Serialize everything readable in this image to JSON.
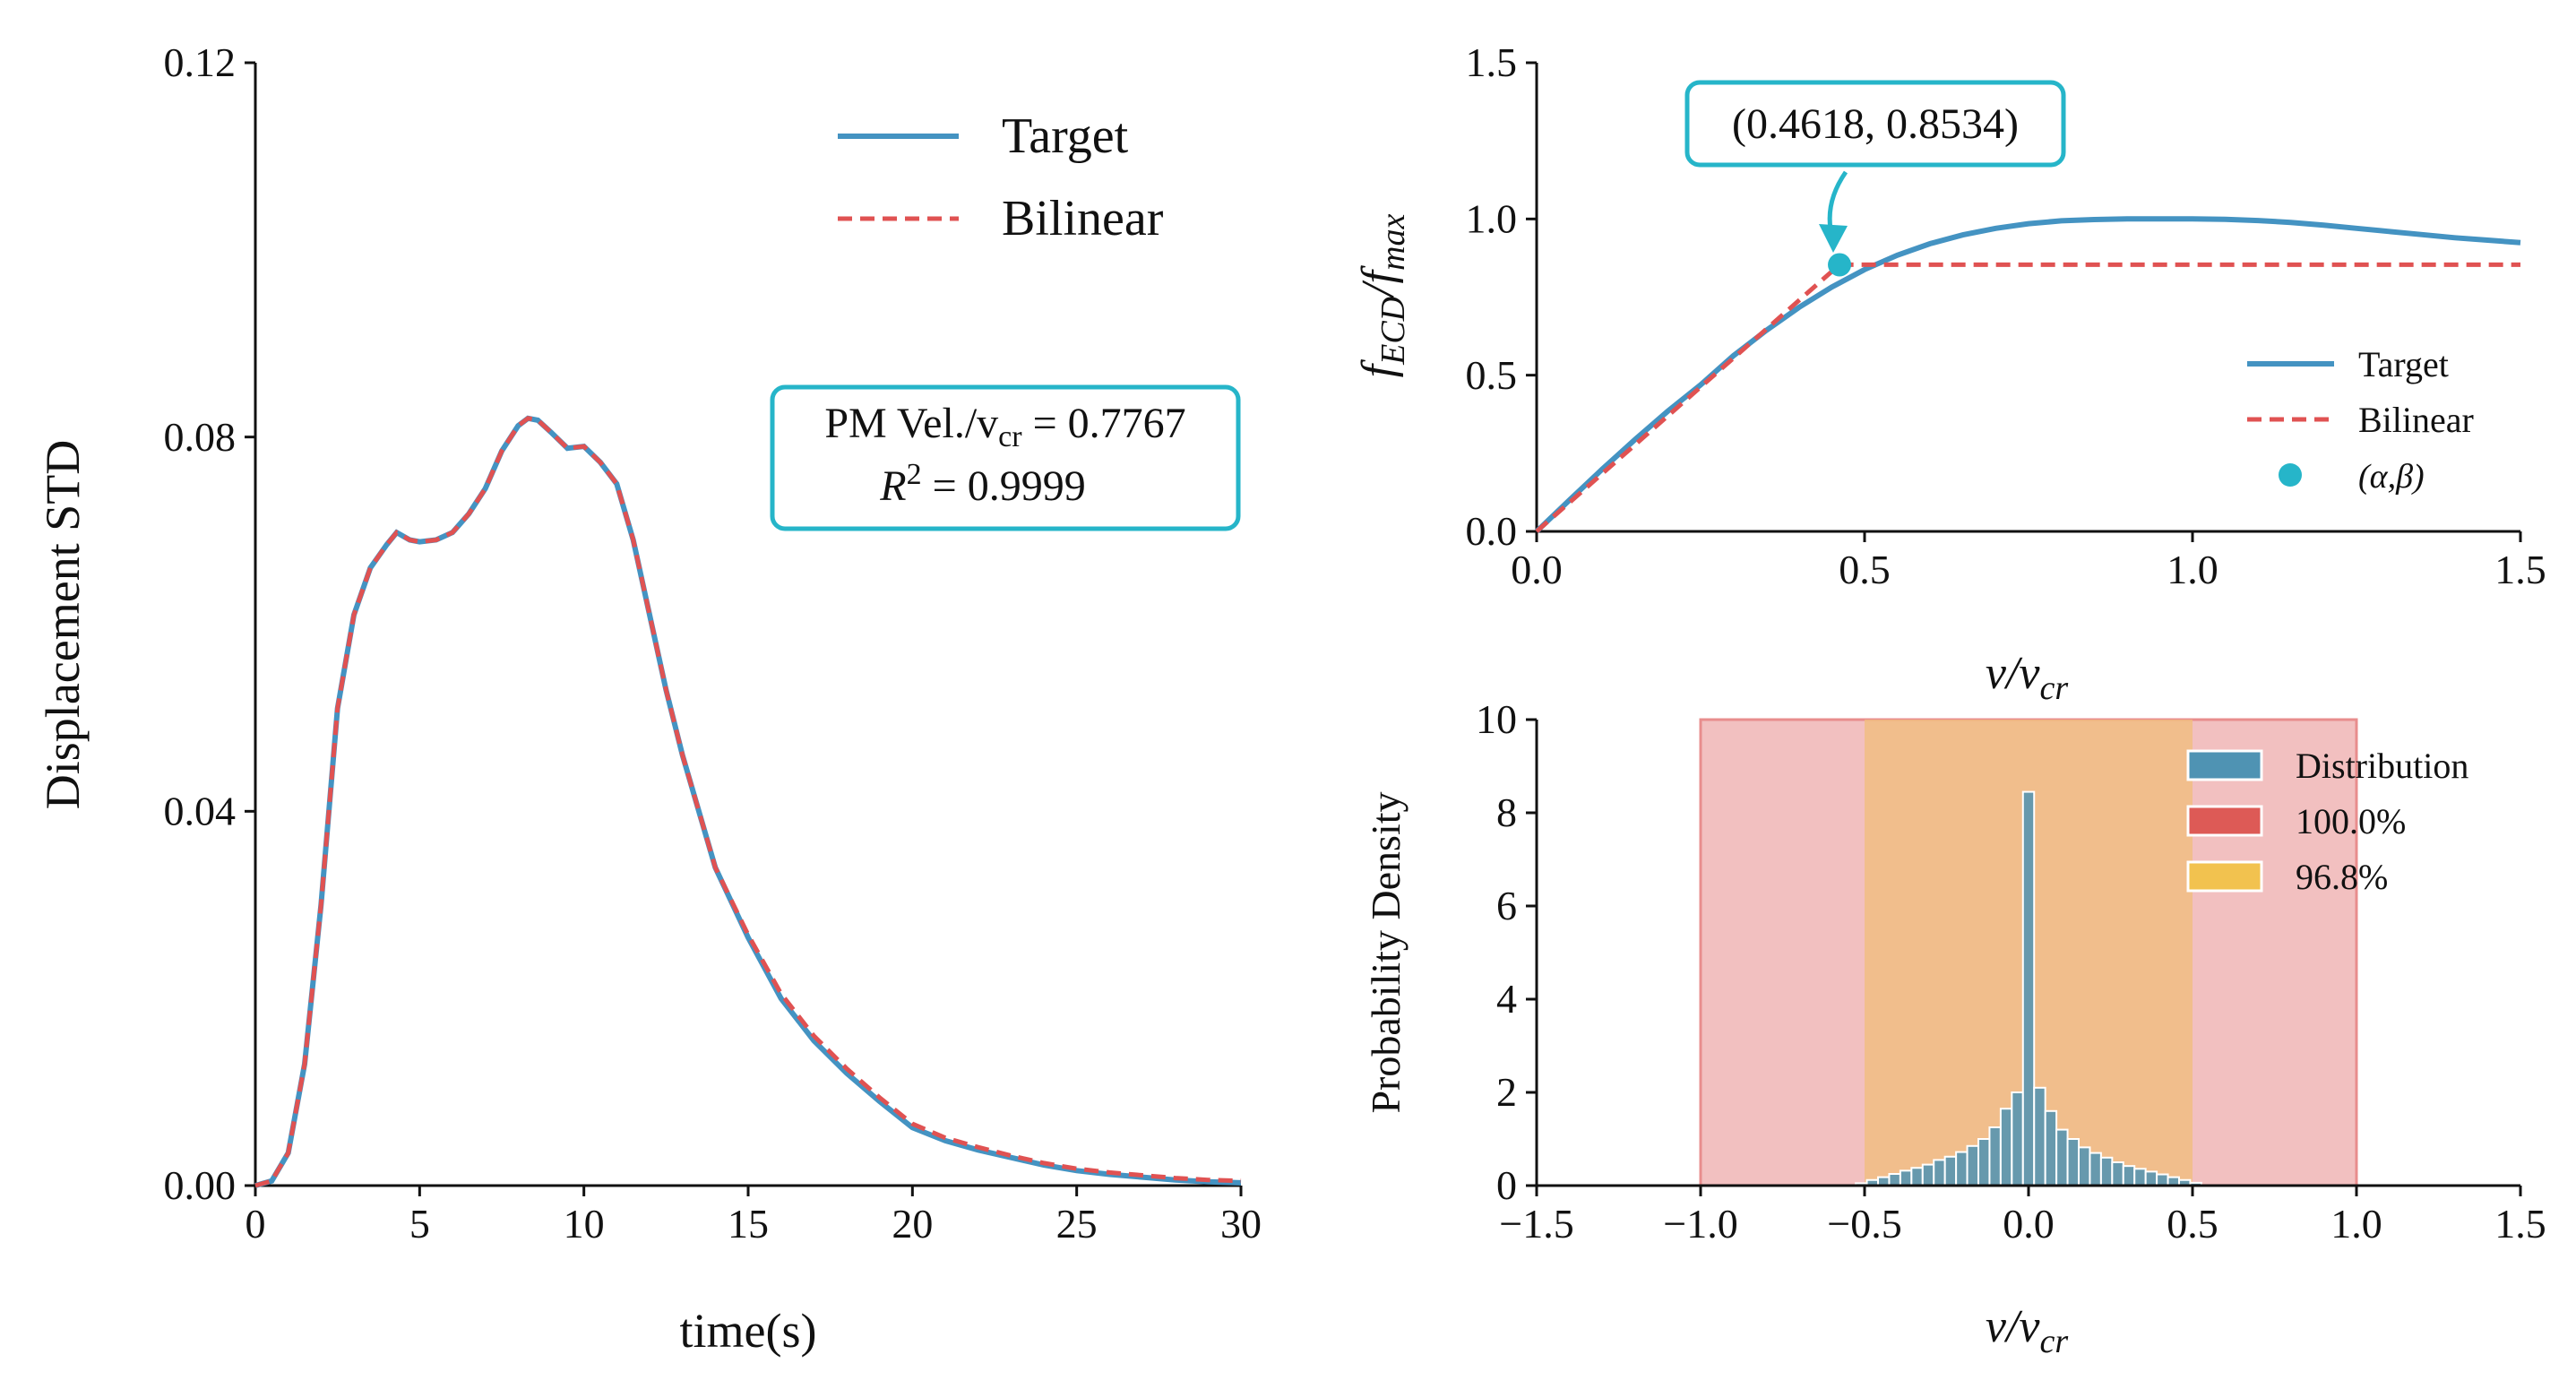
{
  "colors": {
    "target": "#4493c2",
    "bilinear": "#e05252",
    "point": "#26b5c9",
    "annotation_border": "#26b5c9",
    "hist_bar": "#4f93b3",
    "band_100": "#e88d8d",
    "band_968": "#f0bd7e"
  },
  "chart_data": [
    {
      "id": "displacement",
      "type": "line",
      "xlabel": "time(s)",
      "ylabel": "Displacement STD",
      "xlim": [
        0,
        30
      ],
      "ylim": [
        0,
        0.12
      ],
      "xticks": [
        0,
        5,
        10,
        15,
        20,
        25,
        30
      ],
      "xtick_labels": [
        "0",
        "5",
        "10",
        "15",
        "20",
        "25",
        "30"
      ],
      "yticks": [
        0,
        0.04,
        0.08,
        0.12
      ],
      "ytick_labels": [
        "0.00",
        "0.04",
        "0.08",
        "0.12"
      ],
      "legend": {
        "placement": "upper-right",
        "entries": [
          "Target",
          "Bilinear"
        ]
      },
      "annotation": {
        "line1": "PM Vel./v",
        "line1_sub": "cr",
        "line1_value": " = 0.7767",
        "line2": "R",
        "line2_sup": "2",
        "line2_value": " = 0.9999"
      },
      "series": [
        {
          "name": "Target",
          "style": "solid",
          "x": [
            0,
            0.5,
            1,
            1.5,
            2,
            2.5,
            3,
            3.5,
            4,
            4.3,
            4.7,
            5,
            5.5,
            6,
            6.5,
            7,
            7.5,
            8,
            8.3,
            8.6,
            9,
            9.5,
            10,
            10.5,
            11,
            11.5,
            12,
            12.5,
            13,
            14,
            15,
            16,
            17,
            18,
            19,
            20,
            21,
            22,
            23,
            24,
            25,
            26,
            27,
            28,
            29,
            30
          ],
          "y": [
            0,
            0.0005,
            0.0035,
            0.013,
            0.03,
            0.051,
            0.061,
            0.066,
            0.0685,
            0.0698,
            0.069,
            0.0688,
            0.069,
            0.0698,
            0.0718,
            0.0745,
            0.0785,
            0.0812,
            0.082,
            0.0818,
            0.0805,
            0.0788,
            0.079,
            0.0773,
            0.075,
            0.069,
            0.061,
            0.053,
            0.046,
            0.034,
            0.0265,
            0.02,
            0.0155,
            0.012,
            0.009,
            0.0062,
            0.0048,
            0.0038,
            0.003,
            0.0022,
            0.0016,
            0.0012,
            0.0009,
            0.0006,
            0.0004,
            0.0003
          ]
        },
        {
          "name": "Bilinear",
          "style": "dashed",
          "x": [
            0,
            0.5,
            1,
            1.5,
            2,
            2.5,
            3,
            3.5,
            4,
            4.3,
            4.7,
            5,
            5.5,
            6,
            6.5,
            7,
            7.5,
            8,
            8.3,
            8.6,
            9,
            9.5,
            10,
            10.5,
            11,
            11.5,
            12,
            12.5,
            13,
            14,
            15,
            16,
            17,
            18,
            19,
            20,
            21,
            22,
            23,
            24,
            25,
            26,
            27,
            28,
            29,
            30
          ],
          "y": [
            0,
            0.0005,
            0.0035,
            0.013,
            0.03,
            0.051,
            0.061,
            0.066,
            0.0685,
            0.0698,
            0.069,
            0.0688,
            0.069,
            0.0698,
            0.0718,
            0.0745,
            0.0785,
            0.0812,
            0.082,
            0.0818,
            0.0805,
            0.0788,
            0.079,
            0.0773,
            0.075,
            0.069,
            0.061,
            0.053,
            0.046,
            0.034,
            0.0268,
            0.0205,
            0.016,
            0.0125,
            0.0094,
            0.0066,
            0.0051,
            0.0041,
            0.0032,
            0.0024,
            0.0018,
            0.0014,
            0.0011,
            0.0008,
            0.0006,
            0.0005
          ]
        }
      ]
    },
    {
      "id": "ecd",
      "type": "line",
      "xlabel": "v/v",
      "xlabel_sub": "cr",
      "ylabel": "f",
      "ylabel_sub1": "ECD",
      "ylabel_mid": "/f",
      "ylabel_sub2": "max",
      "xlim": [
        0,
        1.5
      ],
      "ylim": [
        0,
        1.5
      ],
      "xticks": [
        0,
        0.5,
        1.0,
        1.5
      ],
      "xtick_labels": [
        "0.0",
        "0.5",
        "1.0",
        "1.5"
      ],
      "yticks": [
        0,
        0.5,
        1.0,
        1.5
      ],
      "ytick_labels": [
        "0.0",
        "0.5",
        "1.0",
        "1.5"
      ],
      "legend": {
        "placement": "lower-right",
        "entries": [
          "Target",
          "Bilinear",
          "(α,β)"
        ]
      },
      "annotation": {
        "text": "(0.4618, 0.8534)",
        "x": 0.4618,
        "y": 0.8534
      },
      "series": [
        {
          "name": "Target",
          "style": "solid",
          "x": [
            0,
            0.05,
            0.1,
            0.15,
            0.2,
            0.25,
            0.3,
            0.35,
            0.4,
            0.45,
            0.5,
            0.55,
            0.6,
            0.65,
            0.7,
            0.75,
            0.8,
            0.85,
            0.9,
            0.95,
            1.0,
            1.05,
            1.1,
            1.15,
            1.2,
            1.25,
            1.3,
            1.35,
            1.4,
            1.45,
            1.5
          ],
          "y": [
            0,
            0.1,
            0.199,
            0.294,
            0.385,
            0.469,
            0.562,
            0.643,
            0.717,
            0.782,
            0.838,
            0.884,
            0.921,
            0.949,
            0.97,
            0.985,
            0.994,
            0.998,
            1.0,
            1.0,
            1.0,
            0.999,
            0.995,
            0.989,
            0.98,
            0.97,
            0.96,
            0.95,
            0.94,
            0.932,
            0.924
          ]
        },
        {
          "name": "Bilinear",
          "style": "dashed",
          "x": [
            0,
            0.4618,
            1.5
          ],
          "y": [
            0,
            0.8534,
            0.8534
          ]
        },
        {
          "name": "(α,β)",
          "style": "point",
          "x": [
            0.4618
          ],
          "y": [
            0.8534
          ]
        }
      ]
    },
    {
      "id": "distribution",
      "type": "bar",
      "xlabel": "v/v",
      "xlabel_sub": "cr",
      "ylabel": "Probability Density",
      "xlim": [
        -1.5,
        1.5
      ],
      "ylim": [
        0,
        10
      ],
      "xticks": [
        -1.5,
        -1.0,
        -0.5,
        0.0,
        0.5,
        1.0,
        1.5
      ],
      "xtick_labels": [
        "−1.5",
        "−1.0",
        "−0.5",
        "0.0",
        "0.5",
        "1.0",
        "1.5"
      ],
      "yticks": [
        0,
        2,
        4,
        6,
        8,
        10
      ],
      "ytick_labels": [
        "0",
        "2",
        "4",
        "6",
        "8",
        "10"
      ],
      "legend": {
        "placement": "upper-right",
        "entries": [
          "Distribution",
          "100.0%",
          "96.8%"
        ]
      },
      "bands": [
        {
          "name": "100.0%",
          "x": [
            -1.0,
            1.0
          ]
        },
        {
          "name": "96.8%",
          "x": [
            -0.5,
            0.5
          ]
        }
      ],
      "bin_width": 0.034,
      "bin_centers": [
        -0.51,
        -0.476,
        -0.442,
        -0.408,
        -0.374,
        -0.34,
        -0.306,
        -0.272,
        -0.238,
        -0.204,
        -0.17,
        -0.136,
        -0.102,
        -0.068,
        -0.034,
        0.0,
        0.034,
        0.068,
        0.102,
        0.136,
        0.17,
        0.204,
        0.238,
        0.272,
        0.306,
        0.34,
        0.374,
        0.408,
        0.442,
        0.476,
        0.51
      ],
      "values": [
        0.05,
        0.12,
        0.18,
        0.25,
        0.32,
        0.38,
        0.45,
        0.55,
        0.62,
        0.72,
        0.85,
        1.0,
        1.25,
        1.65,
        2.0,
        8.45,
        2.1,
        1.6,
        1.2,
        1.0,
        0.82,
        0.7,
        0.6,
        0.5,
        0.42,
        0.36,
        0.3,
        0.24,
        0.18,
        0.12,
        0.06
      ]
    }
  ]
}
